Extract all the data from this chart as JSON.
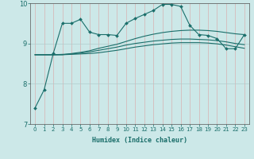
{
  "xlabel": "Humidex (Indice chaleur)",
  "bg_color": "#cce8e8",
  "line_color": "#1a6e6a",
  "grid_color_x": "#d8a0a0",
  "grid_color_y": "#b8d8d8",
  "xlim": [
    -0.5,
    23.5
  ],
  "ylim": [
    7,
    10
  ],
  "yticks": [
    7,
    8,
    9,
    10
  ],
  "xticks": [
    0,
    1,
    2,
    3,
    4,
    5,
    6,
    7,
    8,
    9,
    10,
    11,
    12,
    13,
    14,
    15,
    16,
    17,
    18,
    19,
    20,
    21,
    22,
    23
  ],
  "series": {
    "line_with_markers": [
      7.4,
      7.85,
      8.75,
      9.5,
      9.5,
      9.6,
      9.28,
      9.22,
      9.22,
      9.2,
      9.5,
      9.62,
      9.72,
      9.82,
      9.97,
      9.97,
      9.92,
      9.45,
      9.22,
      9.2,
      9.12,
      8.87,
      8.87,
      9.22
    ],
    "line_smooth": [
      8.72,
      8.72,
      8.72,
      8.72,
      8.75,
      8.78,
      8.82,
      8.88,
      8.93,
      8.98,
      9.05,
      9.12,
      9.18,
      9.23,
      9.27,
      9.3,
      9.32,
      9.33,
      9.33,
      9.32,
      9.3,
      9.27,
      9.24,
      9.22
    ],
    "line_mid": [
      8.72,
      8.72,
      8.72,
      8.73,
      8.74,
      8.76,
      8.79,
      8.83,
      8.87,
      8.91,
      8.96,
      9.0,
      9.03,
      9.06,
      9.08,
      9.1,
      9.11,
      9.11,
      9.1,
      9.09,
      9.07,
      9.04,
      9.0,
      8.97
    ],
    "line_low": [
      8.72,
      8.72,
      8.72,
      8.72,
      8.73,
      8.74,
      8.75,
      8.77,
      8.8,
      8.83,
      8.87,
      8.91,
      8.94,
      8.97,
      8.99,
      9.01,
      9.02,
      9.02,
      9.02,
      9.01,
      8.99,
      8.96,
      8.92,
      8.88
    ]
  }
}
